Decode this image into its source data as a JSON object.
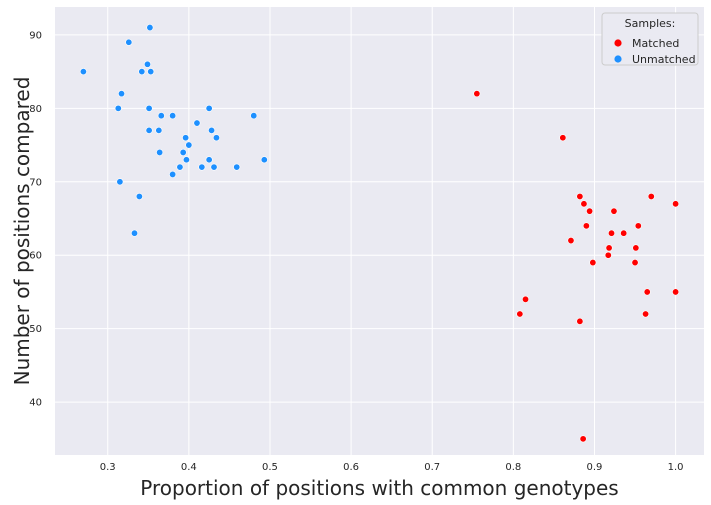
{
  "chart_data": {
    "type": "scatter",
    "xlabel": "Proportion of positions with common genotypes",
    "ylabel": "Number of positions compared",
    "xlim": [
      0.235,
      1.035
    ],
    "ylim": [
      32.8,
      93.8
    ],
    "xticks": [
      0.3,
      0.4,
      0.5,
      0.6,
      0.7,
      0.8,
      0.9,
      1.0
    ],
    "xtick_labels": [
      "0.3",
      "0.4",
      "0.5",
      "0.6",
      "0.7",
      "0.8",
      "0.9",
      "1.0"
    ],
    "yticks": [
      40,
      50,
      60,
      70,
      80,
      90
    ],
    "ytick_labels": [
      "40",
      "50",
      "60",
      "70",
      "80",
      "90"
    ],
    "grid": true,
    "legend": {
      "title": "Samples:",
      "placement": "top-right",
      "entries": [
        {
          "label": "Matched",
          "color": "#ff0000"
        },
        {
          "label": "Unmatched",
          "color": "#1e90ff"
        }
      ]
    },
    "series": [
      {
        "name": "Matched",
        "color": "#ff0000",
        "points": [
          [
            0.755,
            82
          ],
          [
            0.861,
            76
          ],
          [
            0.882,
            68
          ],
          [
            0.97,
            68
          ],
          [
            0.887,
            67
          ],
          [
            1.0,
            67
          ],
          [
            0.894,
            66
          ],
          [
            0.924,
            66
          ],
          [
            0.89,
            64
          ],
          [
            0.954,
            64
          ],
          [
            0.921,
            63
          ],
          [
            0.936,
            63
          ],
          [
            0.871,
            62
          ],
          [
            0.918,
            61
          ],
          [
            0.951,
            61
          ],
          [
            0.917,
            60
          ],
          [
            0.898,
            59
          ],
          [
            0.95,
            59
          ],
          [
            0.965,
            55
          ],
          [
            1.0,
            55
          ],
          [
            0.815,
            54
          ],
          [
            0.808,
            52
          ],
          [
            0.963,
            52
          ],
          [
            0.882,
            51
          ],
          [
            0.886,
            35
          ]
        ]
      },
      {
        "name": "Unmatched",
        "color": "#1e90ff",
        "points": [
          [
            0.352,
            91
          ],
          [
            0.326,
            89
          ],
          [
            0.349,
            86
          ],
          [
            0.27,
            85
          ],
          [
            0.342,
            85
          ],
          [
            0.353,
            85
          ],
          [
            0.317,
            82
          ],
          [
            0.313,
            80
          ],
          [
            0.351,
            80
          ],
          [
            0.425,
            80
          ],
          [
            0.366,
            79
          ],
          [
            0.38,
            79
          ],
          [
            0.48,
            79
          ],
          [
            0.41,
            78
          ],
          [
            0.351,
            77
          ],
          [
            0.363,
            77
          ],
          [
            0.428,
            77
          ],
          [
            0.396,
            76
          ],
          [
            0.434,
            76
          ],
          [
            0.4,
            75
          ],
          [
            0.364,
            74
          ],
          [
            0.393,
            74
          ],
          [
            0.397,
            73
          ],
          [
            0.425,
            73
          ],
          [
            0.493,
            73
          ],
          [
            0.389,
            72
          ],
          [
            0.416,
            72
          ],
          [
            0.431,
            72
          ],
          [
            0.459,
            72
          ],
          [
            0.38,
            71
          ],
          [
            0.315,
            70
          ],
          [
            0.339,
            68
          ],
          [
            0.333,
            63
          ]
        ]
      }
    ]
  }
}
